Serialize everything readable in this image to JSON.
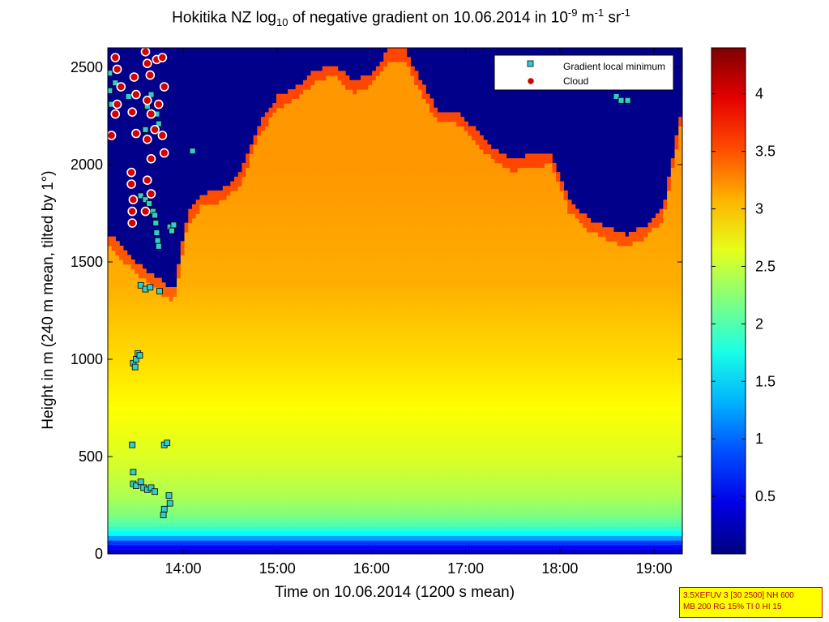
{
  "chart_data": {
    "type": "heatmap",
    "title": {
      "prefix": "Hokitika NZ log",
      "sub": "10",
      "mid": " of negative gradient on 10.06.2014 in 10",
      "sup1": "-9",
      "mid2": " m",
      "sup2": "-1",
      "mid3": " sr",
      "sup3": "-1"
    },
    "xlabel": "Time on 10.06.2014 (1200 s mean)",
    "ylabel": "Height in m (240 m mean, tilted by 1°)",
    "xlim": [
      13.2,
      19.3
    ],
    "ylim": [
      0,
      2600
    ],
    "x_ticks": [
      {
        "value": 14,
        "label": "14:00"
      },
      {
        "value": 15,
        "label": "15:00"
      },
      {
        "value": 16,
        "label": "16:00"
      },
      {
        "value": 17,
        "label": "17:00"
      },
      {
        "value": 18,
        "label": "18:00"
      },
      {
        "value": 19,
        "label": "19:00"
      }
    ],
    "y_ticks": [
      {
        "value": 0,
        "label": "0"
      },
      {
        "value": 500,
        "label": "500"
      },
      {
        "value": 1000,
        "label": "1000"
      },
      {
        "value": 1500,
        "label": "1500"
      },
      {
        "value": 2000,
        "label": "2000"
      },
      {
        "value": 2500,
        "label": "2500"
      }
    ],
    "colorbar": {
      "range": [
        0,
        4.4
      ],
      "ticks": [
        0.5,
        1,
        1.5,
        2,
        2.5,
        3,
        3.5,
        4
      ],
      "tick_labels": [
        "0.5",
        "1",
        "1.5",
        "2",
        "2.5",
        "3",
        "3.5",
        "4"
      ],
      "colormap": "jet"
    },
    "legend": {
      "placement": "top-right",
      "entries": [
        {
          "label": "Gradient local minimum",
          "marker": "square",
          "color": "#33cccc"
        },
        {
          "label": "Cloud",
          "marker": "circle",
          "color": "#d40000"
        }
      ]
    },
    "layer_top": {
      "times": [
        13.2,
        13.5,
        13.9,
        14.05,
        14.2,
        14.4,
        14.6,
        14.8,
        15.0,
        15.2,
        15.4,
        15.6,
        15.8,
        16.0,
        16.2,
        16.35,
        16.5,
        16.7,
        16.9,
        17.1,
        17.3,
        17.5,
        17.7,
        17.9,
        18.1,
        18.3,
        18.5,
        18.7,
        18.9,
        19.1,
        19.3
      ],
      "heights": [
        1650,
        1500,
        1350,
        1750,
        1850,
        1870,
        1950,
        2200,
        2350,
        2400,
        2480,
        2520,
        2430,
        2470,
        2600,
        2600,
        2450,
        2280,
        2280,
        2180,
        2080,
        2030,
        2050,
        2060,
        1820,
        1720,
        1680,
        1640,
        1680,
        1780,
        2300
      ]
    },
    "value_profile": {
      "heights": [
        0,
        60,
        100,
        150,
        200,
        300,
        500,
        750,
        1000,
        1200,
        1400,
        1700,
        2000,
        2600
      ],
      "values": [
        0.2,
        0.8,
        1.6,
        2.0,
        2.2,
        2.4,
        2.6,
        2.75,
        2.9,
        3.0,
        3.1,
        3.15,
        3.2,
        3.2
      ]
    },
    "gradient_minima": [
      {
        "x": 13.22,
        "y": 2380
      },
      {
        "x": 13.22,
        "y": 2470
      },
      {
        "x": 13.24,
        "y": 2310
      },
      {
        "x": 13.28,
        "y": 2420
      },
      {
        "x": 13.42,
        "y": 2350
      },
      {
        "x": 13.62,
        "y": 2300
      },
      {
        "x": 13.66,
        "y": 2360
      },
      {
        "x": 13.72,
        "y": 2260
      },
      {
        "x": 13.74,
        "y": 2210
      },
      {
        "x": 13.6,
        "y": 2180
      },
      {
        "x": 14.1,
        "y": 2070
      },
      {
        "x": 13.55,
        "y": 1840
      },
      {
        "x": 13.6,
        "y": 1820
      },
      {
        "x": 13.64,
        "y": 1800
      },
      {
        "x": 13.68,
        "y": 1760
      },
      {
        "x": 13.7,
        "y": 1740
      },
      {
        "x": 13.71,
        "y": 1700
      },
      {
        "x": 13.72,
        "y": 1650
      },
      {
        "x": 13.73,
        "y": 1610
      },
      {
        "x": 13.74,
        "y": 1580
      },
      {
        "x": 13.86,
        "y": 1680
      },
      {
        "x": 13.88,
        "y": 1660
      },
      {
        "x": 13.9,
        "y": 1690
      },
      {
        "x": 13.55,
        "y": 1380
      },
      {
        "x": 13.6,
        "y": 1360
      },
      {
        "x": 13.65,
        "y": 1370
      },
      {
        "x": 13.75,
        "y": 1350
      },
      {
        "x": 13.47,
        "y": 980
      },
      {
        "x": 13.49,
        "y": 960
      },
      {
        "x": 13.5,
        "y": 1000
      },
      {
        "x": 13.52,
        "y": 1030
      },
      {
        "x": 13.54,
        "y": 1020
      },
      {
        "x": 13.46,
        "y": 560
      },
      {
        "x": 13.8,
        "y": 560
      },
      {
        "x": 13.83,
        "y": 570
      },
      {
        "x": 13.47,
        "y": 420
      },
      {
        "x": 13.47,
        "y": 360
      },
      {
        "x": 13.5,
        "y": 350
      },
      {
        "x": 13.55,
        "y": 370
      },
      {
        "x": 13.58,
        "y": 340
      },
      {
        "x": 13.62,
        "y": 330
      },
      {
        "x": 13.66,
        "y": 340
      },
      {
        "x": 13.7,
        "y": 320
      },
      {
        "x": 13.85,
        "y": 300
      },
      {
        "x": 13.86,
        "y": 260
      },
      {
        "x": 13.8,
        "y": 230
      },
      {
        "x": 13.79,
        "y": 200
      },
      {
        "x": 18.55,
        "y": 2400
      },
      {
        "x": 18.6,
        "y": 2350
      },
      {
        "x": 18.65,
        "y": 2330
      },
      {
        "x": 18.72,
        "y": 2330
      }
    ],
    "clouds": [
      {
        "x": 13.28,
        "y": 2550
      },
      {
        "x": 13.3,
        "y": 2490
      },
      {
        "x": 13.34,
        "y": 2400
      },
      {
        "x": 13.3,
        "y": 2310
      },
      {
        "x": 13.28,
        "y": 2260
      },
      {
        "x": 13.24,
        "y": 2150
      },
      {
        "x": 13.48,
        "y": 2450
      },
      {
        "x": 13.5,
        "y": 2360
      },
      {
        "x": 13.46,
        "y": 2270
      },
      {
        "x": 13.5,
        "y": 2160
      },
      {
        "x": 13.6,
        "y": 2580
      },
      {
        "x": 13.62,
        "y": 2520
      },
      {
        "x": 13.65,
        "y": 2460
      },
      {
        "x": 13.72,
        "y": 2540
      },
      {
        "x": 13.78,
        "y": 2550
      },
      {
        "x": 13.8,
        "y": 2400
      },
      {
        "x": 13.62,
        "y": 2330
      },
      {
        "x": 13.66,
        "y": 2260
      },
      {
        "x": 13.62,
        "y": 2130
      },
      {
        "x": 13.7,
        "y": 2180
      },
      {
        "x": 13.74,
        "y": 2310
      },
      {
        "x": 13.78,
        "y": 2150
      },
      {
        "x": 13.8,
        "y": 2060
      },
      {
        "x": 13.66,
        "y": 2030
      },
      {
        "x": 13.45,
        "y": 1960
      },
      {
        "x": 13.45,
        "y": 1900
      },
      {
        "x": 13.47,
        "y": 1820
      },
      {
        "x": 13.46,
        "y": 1760
      },
      {
        "x": 13.46,
        "y": 1700
      },
      {
        "x": 13.62,
        "y": 1920
      },
      {
        "x": 13.66,
        "y": 1850
      },
      {
        "x": 13.6,
        "y": 1760
      }
    ],
    "infobox": {
      "line1": "3.5XEFUV 3 [30 2500] NH 600",
      "line2": "MB 200 RG 15% TI 0 HI 15"
    }
  }
}
